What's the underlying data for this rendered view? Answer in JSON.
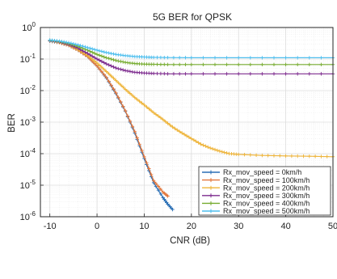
{
  "chart_data": {
    "type": "line",
    "title": "5G BER for QPSK",
    "xlabel": "CNR (dB)",
    "ylabel": "BER",
    "xlim": [
      -12,
      50
    ],
    "ylim_log10": [
      -6,
      0
    ],
    "y_scale": "log",
    "grid": true,
    "minor_grid": true,
    "legend_position": "bottom-right",
    "x_ticks": [
      -10,
      0,
      10,
      20,
      30,
      40,
      50
    ],
    "x_tick_labels": [
      "-10",
      "0",
      "10",
      "20",
      "30",
      "40",
      "50"
    ],
    "y_ticks_log10": [
      0,
      -1,
      -2,
      -3,
      -4,
      -5,
      -6
    ],
    "y_tick_labels": [
      {
        "base": "10",
        "exp": "0"
      },
      {
        "base": "10",
        "exp": "-1"
      },
      {
        "base": "10",
        "exp": "-2"
      },
      {
        "base": "10",
        "exp": "-3"
      },
      {
        "base": "10",
        "exp": "-4"
      },
      {
        "base": "10",
        "exp": "-5"
      },
      {
        "base": "10",
        "exp": "-6"
      }
    ],
    "series": [
      {
        "name": "Rx_mov_speed = 0km/h",
        "color": "#2a6fb5",
        "marker": "+",
        "x": [
          -10,
          -8,
          -6,
          -4,
          -2,
          0,
          2,
          4,
          6,
          8,
          10,
          12,
          14,
          15,
          16
        ],
        "y": [
          0.37,
          0.33,
          0.27,
          0.19,
          0.12,
          0.06,
          0.025,
          0.008,
          0.0022,
          0.00045,
          7e-05,
          1.2e-05,
          4e-06,
          2.5e-06,
          1.7e-06
        ]
      },
      {
        "name": "Rx_mov_speed = 100km/h",
        "color": "#e3763a",
        "marker": "+",
        "x": [
          -10,
          -8,
          -6,
          -4,
          -2,
          0,
          2,
          4,
          6,
          8,
          10,
          12,
          14,
          15
        ],
        "y": [
          0.38,
          0.33,
          0.27,
          0.19,
          0.12,
          0.06,
          0.026,
          0.0085,
          0.0023,
          0.0005,
          8e-05,
          1.4e-05,
          6e-06,
          4.5e-06
        ]
      },
      {
        "name": "Rx_mov_speed = 200km/h",
        "color": "#eeb43a",
        "marker": "+",
        "x": [
          -10,
          -8,
          -6,
          -4,
          -2,
          0,
          2,
          4,
          6,
          8,
          10,
          12,
          14,
          16,
          18,
          20,
          22,
          24,
          26,
          28,
          30,
          35,
          40,
          45,
          50
        ],
        "y": [
          0.38,
          0.34,
          0.28,
          0.2,
          0.13,
          0.075,
          0.04,
          0.021,
          0.011,
          0.006,
          0.0035,
          0.002,
          0.0012,
          0.0007,
          0.00045,
          0.0003,
          0.0002,
          0.00015,
          0.00012,
          0.0001,
          9.5e-05,
          8.8e-05,
          8.5e-05,
          8.3e-05,
          8e-05
        ]
      },
      {
        "name": "Rx_mov_speed = 300km/h",
        "color": "#7d2b8e",
        "marker": "+",
        "x": [
          -10,
          -8,
          -6,
          -4,
          -2,
          0,
          2,
          4,
          6,
          8,
          10,
          12,
          15,
          20,
          30,
          40,
          50
        ],
        "y": [
          0.38,
          0.35,
          0.29,
          0.22,
          0.15,
          0.1,
          0.07,
          0.052,
          0.043,
          0.038,
          0.036,
          0.035,
          0.034,
          0.034,
          0.034,
          0.034,
          0.034
        ]
      },
      {
        "name": "Rx_mov_speed = 400km/h",
        "color": "#77ac30",
        "marker": "+",
        "x": [
          -10,
          -8,
          -6,
          -4,
          -2,
          0,
          2,
          4,
          6,
          8,
          10,
          12,
          15,
          20,
          30,
          40,
          50
        ],
        "y": [
          0.39,
          0.36,
          0.31,
          0.25,
          0.19,
          0.14,
          0.11,
          0.09,
          0.078,
          0.072,
          0.069,
          0.068,
          0.067,
          0.067,
          0.067,
          0.067,
          0.067
        ]
      },
      {
        "name": "Rx_mov_speed = 500km/h",
        "color": "#4dbeee",
        "marker": "+",
        "x": [
          -10,
          -8,
          -6,
          -4,
          -2,
          0,
          2,
          4,
          6,
          8,
          10,
          12,
          15,
          20,
          30,
          40,
          50
        ],
        "y": [
          0.4,
          0.37,
          0.33,
          0.28,
          0.23,
          0.19,
          0.16,
          0.14,
          0.128,
          0.12,
          0.116,
          0.113,
          0.111,
          0.11,
          0.11,
          0.11,
          0.11
        ]
      }
    ]
  }
}
